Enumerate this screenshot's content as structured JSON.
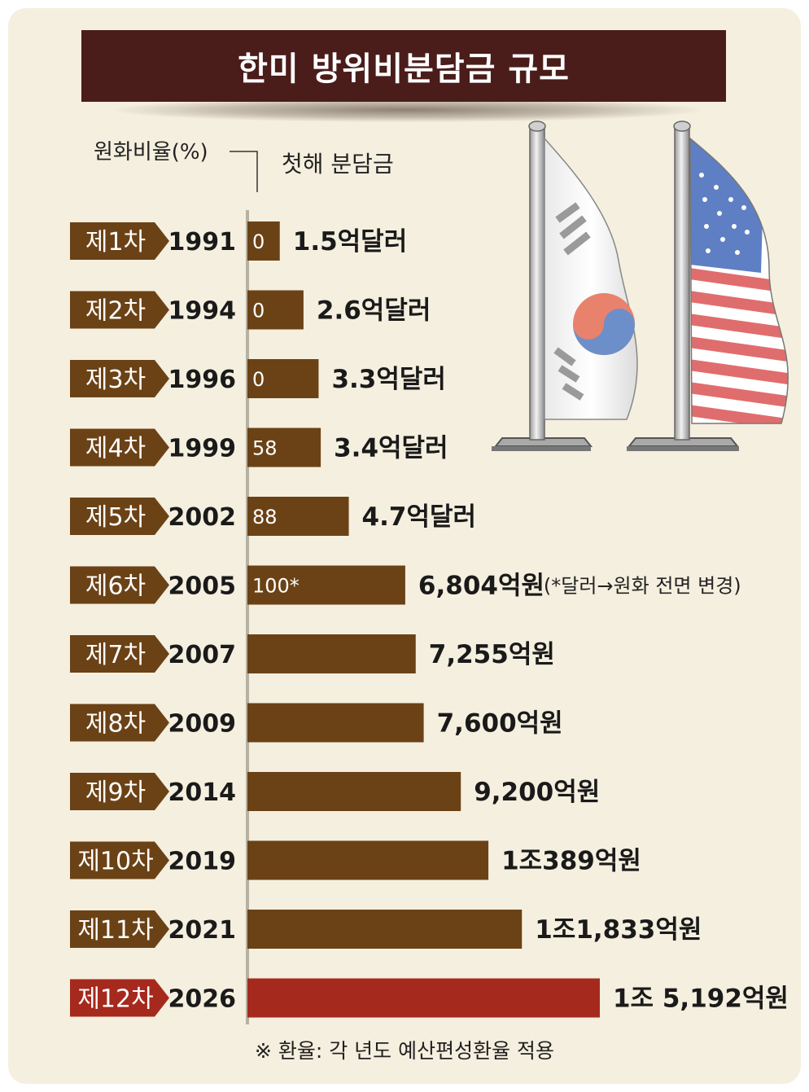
{
  "title": "한미 방위비분담금 규모",
  "header": {
    "ratio_label": "원화비율(%)",
    "first_year_label": "첫해 분담금"
  },
  "footnote": "※ 환율: 각 년도 예산편성환율 적용",
  "colors": {
    "bar": "#6b4216",
    "highlight_bar": "#a52a1d",
    "title_bg": "#4a1c1a",
    "background": "#f5efdf",
    "highlight_text": "#a52a1d"
  },
  "chart_data": {
    "type": "bar",
    "orientation": "horizontal",
    "title": "한미 방위비분담금 규모",
    "ylabel": "원화비율(%)",
    "xlabel": "첫해 분담금",
    "rows": [
      {
        "round": "제1차",
        "year": "1991",
        "ratio": "0",
        "amount_label": "1.5억달러",
        "value": 1.5,
        "unit": "억달러"
      },
      {
        "round": "제2차",
        "year": "1994",
        "ratio": "0",
        "amount_label": "2.6억달러",
        "value": 2.6,
        "unit": "억달러"
      },
      {
        "round": "제3차",
        "year": "1996",
        "ratio": "0",
        "amount_label": "3.3억달러",
        "value": 3.3,
        "unit": "억달러"
      },
      {
        "round": "제4차",
        "year": "1999",
        "ratio": "58",
        "amount_label": "3.4억달러",
        "value": 3.4,
        "unit": "억달러"
      },
      {
        "round": "제5차",
        "year": "2002",
        "ratio": "88",
        "amount_label": "4.7억달러",
        "value": 4.7,
        "unit": "억달러"
      },
      {
        "round": "제6차",
        "year": "2005",
        "ratio": "100*",
        "amount_label": "6,804억원",
        "value": 6804,
        "unit": "억원",
        "note": "(*달러→원화 전면 변경)"
      },
      {
        "round": "제7차",
        "year": "2007",
        "ratio": "",
        "amount_label": "7,255억원",
        "value": 7255,
        "unit": "억원"
      },
      {
        "round": "제8차",
        "year": "2009",
        "ratio": "",
        "amount_label": "7,600억원",
        "value": 7600,
        "unit": "억원"
      },
      {
        "round": "제9차",
        "year": "2014",
        "ratio": "",
        "amount_label": "9,200억원",
        "value": 9200,
        "unit": "억원"
      },
      {
        "round": "제10차",
        "year": "2019",
        "ratio": "",
        "amount_label": "1조389억원",
        "value": 10389,
        "unit": "억원"
      },
      {
        "round": "제11차",
        "year": "2021",
        "ratio": "",
        "amount_label": "1조1,833억원",
        "value": 11833,
        "unit": "억원"
      },
      {
        "round": "제12차",
        "year": "2026",
        "ratio": "",
        "amount_label": "1조 5,192억원",
        "value": 15192,
        "unit": "억원",
        "highlight": true
      }
    ]
  }
}
